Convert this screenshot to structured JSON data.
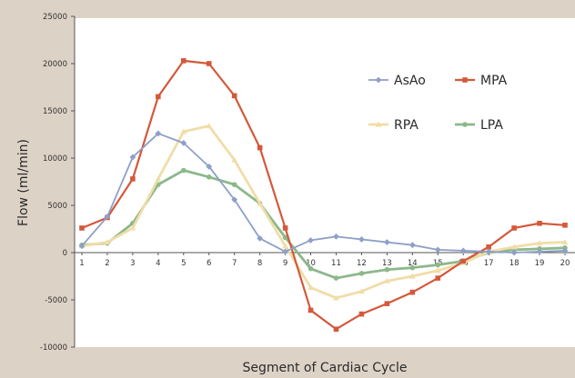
{
  "chart_data": {
    "type": "line",
    "title": "",
    "xlabel": "Segment of Cardiac Cycle",
    "ylabel": "Flow (ml/min)",
    "x": [
      1,
      2,
      3,
      4,
      5,
      6,
      7,
      8,
      9,
      10,
      11,
      12,
      13,
      14,
      15,
      16,
      17,
      18,
      19,
      20
    ],
    "ylim": [
      -10000,
      25000
    ],
    "yticks": [
      -10000,
      -5000,
      0,
      5000,
      10000,
      15000,
      20000,
      25000
    ],
    "grid": false,
    "legend_position": "upper right, inside plot",
    "series": [
      {
        "name": "AsAo",
        "color": "#8ea0c8",
        "marker": "diamond",
        "values": [
          700,
          3800,
          10100,
          12600,
          11600,
          9100,
          5600,
          1500,
          100,
          1300,
          1700,
          1400,
          1100,
          800,
          300,
          200,
          100,
          0,
          100,
          200
        ]
      },
      {
        "name": "MPA",
        "color": "#d4583a",
        "marker": "square",
        "values": [
          2600,
          3700,
          7800,
          16500,
          20300,
          20000,
          16600,
          11100,
          2600,
          -6100,
          -8100,
          -6500,
          -5400,
          -4200,
          -2700,
          -900,
          600,
          2600,
          3100,
          2900
        ]
      },
      {
        "name": "RPA",
        "color": "#f0dda8",
        "marker": "triangle",
        "values": [
          700,
          1100,
          2600,
          7800,
          12800,
          13400,
          9800,
          5200,
          700,
          -3700,
          -4800,
          -4100,
          -3000,
          -2500,
          -1900,
          -1100,
          100,
          600,
          1000,
          1100
        ]
      },
      {
        "name": "LPA",
        "color": "#8cb88a",
        "marker": "circle",
        "values": [
          800,
          1000,
          3100,
          7200,
          8700,
          8000,
          7200,
          5200,
          1600,
          -1700,
          -2700,
          -2200,
          -1800,
          -1600,
          -1300,
          -900,
          0,
          300,
          400,
          500
        ]
      }
    ]
  }
}
